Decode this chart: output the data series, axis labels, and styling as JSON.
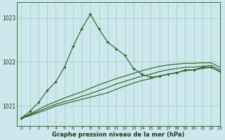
{
  "title": "Graphe pression niveau de la mer (hPa)",
  "bg_color": "#cce8ec",
  "grid_color": "#aacccc",
  "line_color": "#2d5a1b",
  "xlim": [
    -0.5,
    23
  ],
  "ylim": [
    1020.55,
    1023.35
  ],
  "yticks": [
    1021,
    1022,
    1023
  ],
  "xticks": [
    0,
    1,
    2,
    3,
    4,
    5,
    6,
    7,
    8,
    9,
    10,
    11,
    12,
    13,
    14,
    15,
    16,
    17,
    18,
    19,
    20,
    21,
    22,
    23
  ],
  "series": {
    "spike": [
      1020.72,
      1020.88,
      1021.08,
      1021.35,
      1021.55,
      1021.88,
      1022.35,
      1022.75,
      1023.08,
      1022.75,
      1022.45,
      1022.3,
      1022.15,
      1021.85,
      1021.72,
      1021.65,
      1021.68,
      1021.72,
      1021.75,
      1021.82,
      1021.82,
      1021.88,
      1021.88,
      1021.78
    ],
    "flat1": [
      1020.72,
      1020.78,
      1020.85,
      1020.92,
      1021.0,
      1021.05,
      1021.1,
      1021.15,
      1021.2,
      1021.25,
      1021.3,
      1021.38,
      1021.45,
      1021.52,
      1021.58,
      1021.62,
      1021.68,
      1021.72,
      1021.76,
      1021.8,
      1021.82,
      1021.85,
      1021.88,
      1021.78
    ],
    "flat2": [
      1020.72,
      1020.8,
      1020.88,
      1020.96,
      1021.04,
      1021.1,
      1021.15,
      1021.22,
      1021.28,
      1021.35,
      1021.42,
      1021.5,
      1021.56,
      1021.62,
      1021.68,
      1021.72,
      1021.78,
      1021.82,
      1021.85,
      1021.88,
      1021.88,
      1021.9,
      1021.92,
      1021.82
    ],
    "flat3": [
      1020.72,
      1020.82,
      1020.92,
      1021.02,
      1021.1,
      1021.18,
      1021.25,
      1021.32,
      1021.4,
      1021.48,
      1021.55,
      1021.62,
      1021.68,
      1021.74,
      1021.8,
      1021.85,
      1021.9,
      1021.93,
      1021.95,
      1021.97,
      1021.97,
      1021.98,
      1021.98,
      1021.88
    ]
  }
}
